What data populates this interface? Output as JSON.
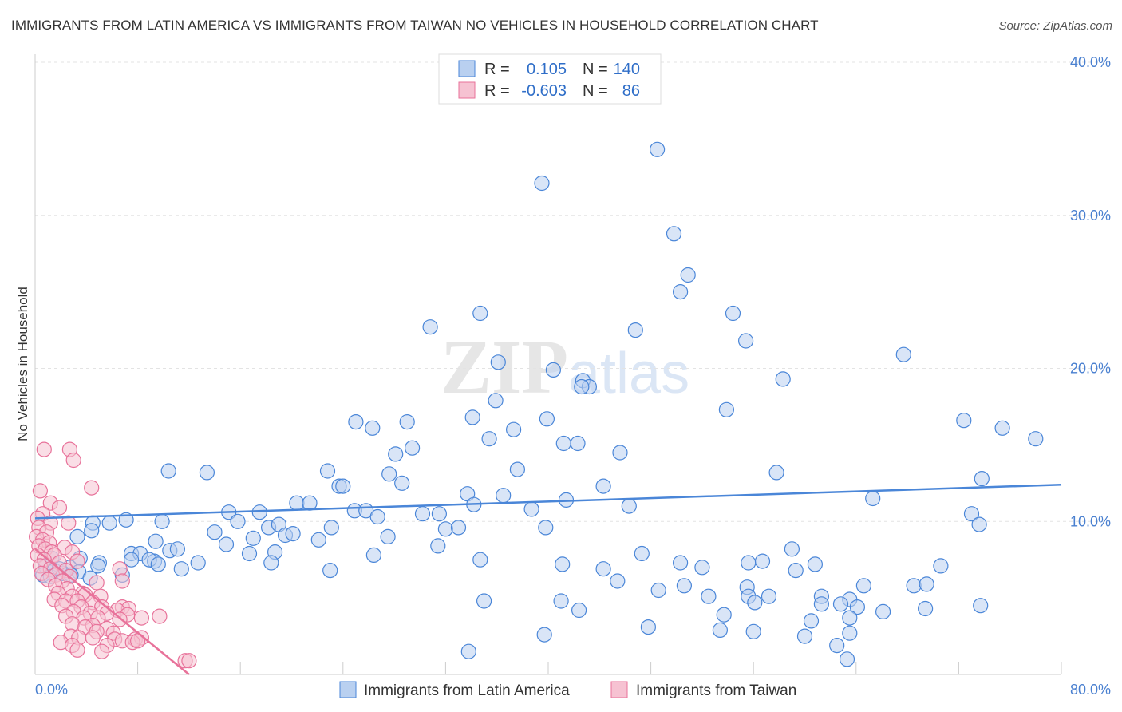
{
  "title": "IMMIGRANTS FROM LATIN AMERICA VS IMMIGRANTS FROM TAIWAN NO VEHICLES IN HOUSEHOLD CORRELATION CHART",
  "source": "Source: ZipAtlas.com",
  "watermark": {
    "zip": "ZIP",
    "atlas": "atlas"
  },
  "colors": {
    "blue": "#4a86d8",
    "pink": "#e8729a",
    "blue_fill": "#b9d0f0",
    "pink_fill": "#f6c2d2",
    "tick": "#4a80d0"
  },
  "legend": {
    "rows": [
      {
        "r_label": "R =",
        "r_value": "0.105",
        "n_label": "N =",
        "n_value": "140"
      },
      {
        "r_label": "R =",
        "r_value": "-0.603",
        "n_label": "N =",
        "n_value": "86"
      }
    ]
  },
  "chart_data": {
    "type": "scatter",
    "title": "IMMIGRANTS FROM LATIN AMERICA VS IMMIGRANTS FROM TAIWAN NO VEHICLES IN HOUSEHOLD CORRELATION CHART",
    "xlabel": "",
    "ylabel": "No Vehicles in Household",
    "xlim": [
      0,
      80
    ],
    "ylim": [
      0,
      40
    ],
    "x_tick_labels": [
      "0.0%",
      "80.0%"
    ],
    "y_tick_labels": [
      "10.0%",
      "20.0%",
      "30.0%",
      "40.0%"
    ],
    "y_tick_values": [
      10,
      20,
      30,
      40
    ],
    "legend_position": "top-center",
    "series": [
      {
        "name": "Immigrants from Latin America",
        "color": "#4a86d8",
        "trend": {
          "x0": 0,
          "y0": 10.2,
          "x1": 80,
          "y1": 12.4
        },
        "points": [
          [
            48.5,
            34.3
          ],
          [
            39.5,
            32.1
          ],
          [
            49.8,
            28.8
          ],
          [
            50.9,
            26.1
          ],
          [
            50.3,
            25.0
          ],
          [
            34.7,
            23.6
          ],
          [
            46.8,
            22.5
          ],
          [
            30.8,
            22.7
          ],
          [
            54.4,
            23.6
          ],
          [
            55.4,
            21.8
          ],
          [
            36.1,
            20.4
          ],
          [
            40.4,
            19.9
          ],
          [
            42.7,
            19.2
          ],
          [
            43.2,
            18.8
          ],
          [
            42.6,
            18.8
          ],
          [
            67.7,
            20.9
          ],
          [
            58.3,
            19.3
          ],
          [
            35.9,
            17.9
          ],
          [
            53.9,
            17.3
          ],
          [
            25.0,
            16.5
          ],
          [
            29.0,
            16.5
          ],
          [
            34.1,
            16.8
          ],
          [
            39.9,
            16.7
          ],
          [
            26.3,
            16.1
          ],
          [
            37.3,
            16.0
          ],
          [
            72.4,
            16.6
          ],
          [
            75.4,
            16.1
          ],
          [
            78.0,
            15.4
          ],
          [
            35.4,
            15.4
          ],
          [
            29.4,
            14.8
          ],
          [
            28.1,
            14.4
          ],
          [
            41.2,
            15.1
          ],
          [
            42.3,
            15.1
          ],
          [
            45.6,
            14.5
          ],
          [
            22.8,
            13.3
          ],
          [
            37.6,
            13.4
          ],
          [
            10.4,
            13.3
          ],
          [
            13.4,
            13.2
          ],
          [
            27.6,
            13.1
          ],
          [
            57.8,
            13.2
          ],
          [
            73.8,
            12.8
          ],
          [
            23.7,
            12.3
          ],
          [
            28.6,
            12.5
          ],
          [
            44.3,
            12.3
          ],
          [
            24.0,
            12.3
          ],
          [
            33.7,
            11.8
          ],
          [
            36.5,
            11.7
          ],
          [
            65.3,
            11.5
          ],
          [
            41.4,
            11.4
          ],
          [
            20.4,
            11.2
          ],
          [
            21.4,
            11.2
          ],
          [
            34.2,
            11.1
          ],
          [
            15.1,
            10.6
          ],
          [
            17.5,
            10.6
          ],
          [
            24.9,
            10.7
          ],
          [
            25.8,
            10.7
          ],
          [
            38.7,
            10.8
          ],
          [
            46.3,
            11.0
          ],
          [
            26.7,
            10.3
          ],
          [
            30.2,
            10.5
          ],
          [
            31.5,
            10.5
          ],
          [
            73.0,
            10.5
          ],
          [
            7.1,
            10.1
          ],
          [
            4.5,
            9.9
          ],
          [
            5.8,
            9.9
          ],
          [
            9.9,
            10.0
          ],
          [
            15.8,
            10.0
          ],
          [
            18.2,
            9.6
          ],
          [
            19.0,
            9.8
          ],
          [
            32.0,
            9.5
          ],
          [
            33.0,
            9.6
          ],
          [
            73.6,
            9.8
          ],
          [
            3.3,
            9.0
          ],
          [
            4.4,
            9.4
          ],
          [
            14.0,
            9.3
          ],
          [
            19.5,
            9.1
          ],
          [
            20.1,
            9.2
          ],
          [
            17.0,
            8.9
          ],
          [
            22.1,
            8.8
          ],
          [
            23.1,
            9.6
          ],
          [
            27.5,
            9.0
          ],
          [
            39.8,
            9.6
          ],
          [
            9.4,
            8.7
          ],
          [
            10.5,
            8.1
          ],
          [
            11.1,
            8.2
          ],
          [
            14.9,
            8.5
          ],
          [
            18.7,
            8.0
          ],
          [
            7.5,
            7.9
          ],
          [
            8.2,
            7.9
          ],
          [
            16.7,
            7.9
          ],
          [
            26.4,
            7.8
          ],
          [
            31.4,
            8.4
          ],
          [
            47.3,
            7.9
          ],
          [
            59.0,
            8.2
          ],
          [
            1.3,
            7.6
          ],
          [
            3.5,
            7.6
          ],
          [
            5.0,
            7.3
          ],
          [
            7.5,
            7.5
          ],
          [
            9.3,
            7.4
          ],
          [
            12.7,
            7.3
          ],
          [
            18.4,
            7.3
          ],
          [
            41.1,
            7.2
          ],
          [
            50.3,
            7.3
          ],
          [
            55.6,
            7.3
          ],
          [
            56.7,
            7.4
          ],
          [
            60.8,
            7.2
          ],
          [
            70.6,
            7.1
          ],
          [
            0.8,
            7.1
          ],
          [
            2.7,
            7.0
          ],
          [
            4.9,
            7.1
          ],
          [
            8.9,
            7.5
          ],
          [
            9.6,
            7.2
          ],
          [
            11.4,
            6.9
          ],
          [
            23.0,
            6.8
          ],
          [
            34.7,
            7.5
          ],
          [
            44.3,
            6.9
          ],
          [
            52.0,
            7.0
          ],
          [
            59.3,
            6.8
          ],
          [
            1.5,
            6.8
          ],
          [
            3.4,
            6.7
          ],
          [
            0.6,
            6.5
          ],
          [
            2.2,
            6.6
          ],
          [
            1.2,
            6.4
          ],
          [
            2.8,
            6.5
          ],
          [
            4.3,
            6.3
          ],
          [
            6.8,
            6.5
          ],
          [
            45.4,
            6.1
          ],
          [
            50.6,
            5.8
          ],
          [
            55.5,
            5.7
          ],
          [
            64.6,
            5.8
          ],
          [
            68.5,
            5.8
          ],
          [
            69.5,
            5.9
          ],
          [
            48.6,
            5.5
          ],
          [
            52.5,
            5.1
          ],
          [
            55.6,
            5.1
          ],
          [
            57.2,
            5.1
          ],
          [
            61.3,
            5.1
          ],
          [
            63.5,
            4.9
          ],
          [
            41.0,
            4.8
          ],
          [
            56.1,
            4.7
          ],
          [
            61.3,
            4.6
          ],
          [
            62.8,
            4.6
          ],
          [
            64.1,
            4.4
          ],
          [
            73.7,
            4.5
          ],
          [
            42.4,
            4.2
          ],
          [
            53.7,
            3.9
          ],
          [
            63.5,
            3.7
          ],
          [
            66.1,
            4.1
          ],
          [
            60.5,
            3.5
          ],
          [
            47.8,
            3.1
          ],
          [
            39.7,
            2.6
          ],
          [
            56.0,
            2.8
          ],
          [
            63.5,
            2.7
          ],
          [
            62.5,
            1.9
          ],
          [
            53.4,
            2.9
          ],
          [
            69.4,
            4.3
          ],
          [
            35.0,
            4.8
          ],
          [
            1.9,
            6.9
          ],
          [
            60.0,
            2.5
          ],
          [
            33.8,
            1.5
          ],
          [
            63.3,
            1.0
          ]
        ]
      },
      {
        "name": "Immigrants from Taiwan",
        "color": "#e8729a",
        "trend": {
          "x0": 0,
          "y0": 8.2,
          "x1": 12.0,
          "y1": 0.0
        },
        "points": [
          [
            0.7,
            14.7
          ],
          [
            2.7,
            14.7
          ],
          [
            3.0,
            14.0
          ],
          [
            4.4,
            12.2
          ],
          [
            0.4,
            12.0
          ],
          [
            1.2,
            11.2
          ],
          [
            1.9,
            10.9
          ],
          [
            0.6,
            10.5
          ],
          [
            0.2,
            10.2
          ],
          [
            1.2,
            9.9
          ],
          [
            2.6,
            9.9
          ],
          [
            0.3,
            9.6
          ],
          [
            0.9,
            9.3
          ],
          [
            0.1,
            9.0
          ],
          [
            0.6,
            8.8
          ],
          [
            1.1,
            8.6
          ],
          [
            0.3,
            8.4
          ],
          [
            2.3,
            8.3
          ],
          [
            0.8,
            8.2
          ],
          [
            1.3,
            8.0
          ],
          [
            2.9,
            8.0
          ],
          [
            0.2,
            7.8
          ],
          [
            1.5,
            7.8
          ],
          [
            0.7,
            7.5
          ],
          [
            1.9,
            7.3
          ],
          [
            3.3,
            7.4
          ],
          [
            0.4,
            7.1
          ],
          [
            1.2,
            6.9
          ],
          [
            2.4,
            6.8
          ],
          [
            6.6,
            6.9
          ],
          [
            0.5,
            6.6
          ],
          [
            1.6,
            6.5
          ],
          [
            2.7,
            6.4
          ],
          [
            1.0,
            6.2
          ],
          [
            2.1,
            6.1
          ],
          [
            4.8,
            6.0
          ],
          [
            6.8,
            6.1
          ],
          [
            1.6,
            5.8
          ],
          [
            2.5,
            5.6
          ],
          [
            3.7,
            5.3
          ],
          [
            1.8,
            5.3
          ],
          [
            2.9,
            5.1
          ],
          [
            3.9,
            5.2
          ],
          [
            5.1,
            5.1
          ],
          [
            1.5,
            4.9
          ],
          [
            2.4,
            4.8
          ],
          [
            3.3,
            4.8
          ],
          [
            4.5,
            4.7
          ],
          [
            2.1,
            4.5
          ],
          [
            3.6,
            4.4
          ],
          [
            5.2,
            4.4
          ],
          [
            6.8,
            4.4
          ],
          [
            7.3,
            4.3
          ],
          [
            6.4,
            4.2
          ],
          [
            3.0,
            4.1
          ],
          [
            4.3,
            4.0
          ],
          [
            5.6,
            4.0
          ],
          [
            7.2,
            3.9
          ],
          [
            2.4,
            3.8
          ],
          [
            3.8,
            3.7
          ],
          [
            4.9,
            3.7
          ],
          [
            8.3,
            3.7
          ],
          [
            9.7,
            3.8
          ],
          [
            6.6,
            3.6
          ],
          [
            2.9,
            3.3
          ],
          [
            4.5,
            3.2
          ],
          [
            5.6,
            3.0
          ],
          [
            3.9,
            3.1
          ],
          [
            4.8,
            2.8
          ],
          [
            6.1,
            2.7
          ],
          [
            2.8,
            2.5
          ],
          [
            3.4,
            2.4
          ],
          [
            4.5,
            2.4
          ],
          [
            6.2,
            2.3
          ],
          [
            6.8,
            2.2
          ],
          [
            7.8,
            2.3
          ],
          [
            8.3,
            2.4
          ],
          [
            2.0,
            2.1
          ],
          [
            2.9,
            1.9
          ],
          [
            5.6,
            1.9
          ],
          [
            7.6,
            2.1
          ],
          [
            8.0,
            2.2
          ],
          [
            3.3,
            1.6
          ],
          [
            5.2,
            1.5
          ],
          [
            11.7,
            0.9
          ],
          [
            12.0,
            0.9
          ]
        ]
      }
    ]
  },
  "bottom_legend": [
    {
      "label": "Immigrants from Latin America"
    },
    {
      "label": "Immigrants from Taiwan"
    }
  ]
}
